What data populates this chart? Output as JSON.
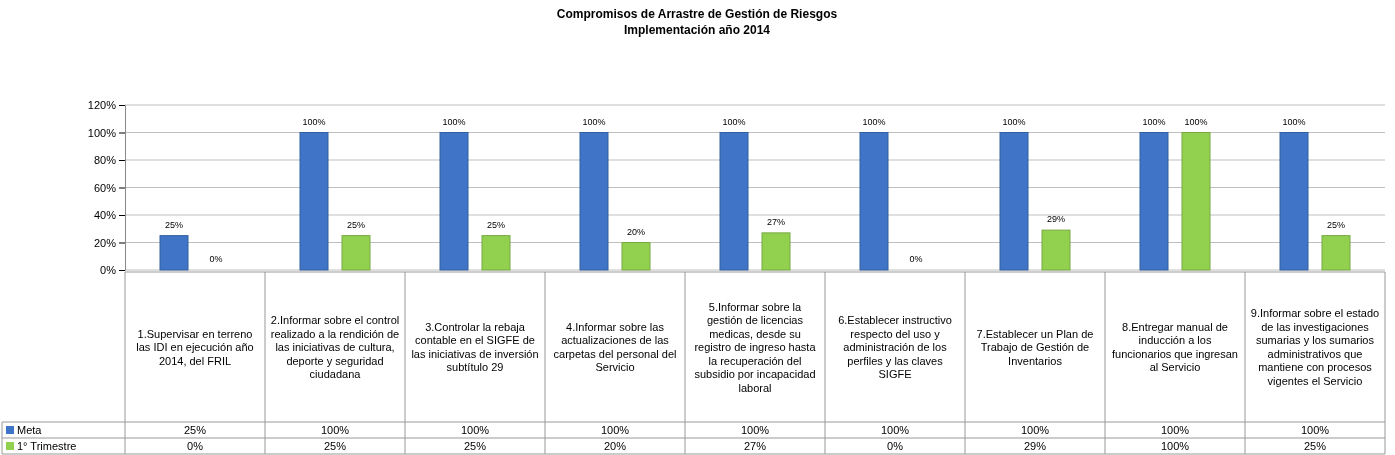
{
  "chart_data": {
    "type": "bar",
    "title": "Compromisos de Arrastre de Gestión de Riesgos",
    "subtitle": "Implementación año 2014",
    "categories": [
      "1.Supervisar en terreno las IDI en ejecución año 2014, del FRIL",
      "2.Informar sobre el control realizado a la rendición de las iniciativas de cultura, deporte y seguridad ciudadana",
      "3.Controlar la rebaja contable en el SIGFE de las iniciativas de inversión subtítulo 29",
      "4.Informar sobre las actualizaciones de las carpetas del personal del Servicio",
      "5.Informar sobre la gestión de licencias medicas, desde su registro de ingreso hasta la recuperación del subsidio por incapacidad laboral",
      "6.Establecer instructivo respecto del uso y administración de los perfiles y las claves SIGFE",
      "7.Establecer un Plan de Trabajo de Gestión de Inventarios",
      "8.Entregar manual de inducción a los funcionarios que ingresan al Servicio",
      "9.Informar sobre el estado de las investigaciones sumarias y los sumarios administrativos que mantiene con procesos vigentes  el Servicio"
    ],
    "series": [
      {
        "name": "Meta",
        "color": "#3f74c6",
        "values": [
          25,
          100,
          100,
          100,
          100,
          100,
          100,
          100,
          100
        ],
        "value_labels": [
          "25%",
          "100%",
          "100%",
          "100%",
          "100%",
          "100%",
          "100%",
          "100%",
          "100%"
        ]
      },
      {
        "name": "1° Trimestre",
        "color": "#92d050",
        "values": [
          0,
          25,
          25,
          20,
          27,
          0,
          29,
          100,
          25
        ],
        "value_labels": [
          "0%",
          "25%",
          "25%",
          "20%",
          "27%",
          "0%",
          "29%",
          "100%",
          "25%"
        ]
      }
    ],
    "ylim": [
      0,
      120
    ],
    "yticks": [
      {
        "value": 0,
        "label": "0%"
      },
      {
        "value": 20,
        "label": "20%"
      },
      {
        "value": 40,
        "label": "40%"
      },
      {
        "value": 60,
        "label": "60%"
      },
      {
        "value": 80,
        "label": "80%"
      },
      {
        "value": 100,
        "label": "100%"
      },
      {
        "value": 120,
        "label": "120%"
      }
    ],
    "grid": "y",
    "legend": "bottom left"
  }
}
